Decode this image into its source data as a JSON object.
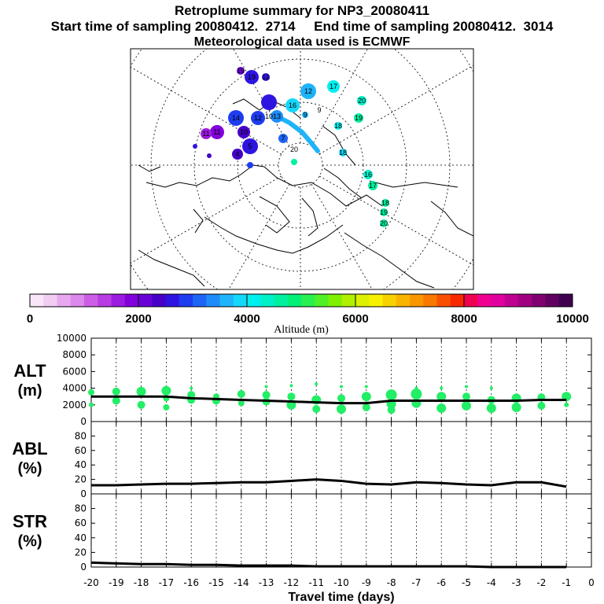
{
  "header": {
    "title": "Retroplume summary for NP3_20080411",
    "line2": "Start time of sampling 20080412.  2714     End time of sampling 20080412.  3014",
    "line3": "Meteorological data used is ECMWF"
  },
  "colorbar": {
    "label": "Altitude (m)",
    "ticks": [
      "0",
      "2000",
      "4000",
      "6000",
      "8000",
      "10000"
    ],
    "colors": [
      "#f9e6f9",
      "#f2cdf2",
      "#e8a8ef",
      "#dc88ec",
      "#cc5ee6",
      "#b83ce2",
      "#9d1ae0",
      "#8200dc",
      "#6a00d8",
      "#4600c8",
      "#2e14e0",
      "#1e3cf0",
      "#1e64f5",
      "#1e8cf8",
      "#1eb4fa",
      "#14d8fa",
      "#00f0f0",
      "#00f0c8",
      "#00f0a0",
      "#00f078",
      "#28f050",
      "#50f028",
      "#80f000",
      "#b0f000",
      "#dcf000",
      "#f8f000",
      "#f8d200",
      "#f8b400",
      "#f89600",
      "#f87800",
      "#f85000",
      "#f82800",
      "#f00050",
      "#f00090",
      "#e000a0",
      "#c00090",
      "#a00080",
      "#800070",
      "#600060",
      "#400050"
    ]
  },
  "map": {
    "labels": [
      "19",
      "12",
      "19",
      "17",
      "20",
      "16",
      "12",
      "18",
      "19",
      "13",
      "12",
      "10",
      "9",
      "5",
      "4",
      "20",
      "16",
      "17",
      "18",
      "19",
      "20",
      "18",
      "7",
      "11",
      "9",
      "14",
      "11",
      "10"
    ]
  },
  "colors": {
    "alt_dots": "#22ee66",
    "line": "#000000"
  },
  "chart_data": [
    {
      "type": "scatter",
      "panel": "ALT",
      "ylabel": "ALT\n(m)",
      "xlabel": "Travel time (days)",
      "xlim": [
        -20,
        0
      ],
      "ylim": [
        0,
        10000
      ],
      "yticks": [
        0,
        2000,
        4000,
        6000,
        8000,
        10000
      ],
      "xticks": [
        -20,
        -19,
        -18,
        -17,
        -16,
        -15,
        -14,
        -13,
        -12,
        -11,
        -10,
        -9,
        -8,
        -7,
        -6,
        -5,
        -4,
        -3,
        -2,
        -1,
        0
      ],
      "median_line": {
        "x": [
          -20,
          -19,
          -18,
          -17,
          -16,
          -15,
          -14,
          -13,
          -12,
          -11,
          -10,
          -9,
          -8,
          -7,
          -6,
          -5,
          -4,
          -3,
          -2,
          -1
        ],
        "y": [
          3000,
          3000,
          3000,
          3000,
          2800,
          2700,
          2600,
          2500,
          2400,
          2300,
          2200,
          2200,
          2500,
          2500,
          2500,
          2500,
          2500,
          2500,
          2600,
          2600
        ]
      },
      "clusters": [
        {
          "x": -20,
          "alts": [
            3500,
            2000
          ],
          "sizes": [
            4,
            3
          ]
        },
        {
          "x": -19,
          "alts": [
            3600,
            2500
          ],
          "sizes": [
            5,
            5
          ]
        },
        {
          "x": -18,
          "alts": [
            3600,
            2000
          ],
          "sizes": [
            6,
            5
          ]
        },
        {
          "x": -17,
          "alts": [
            3700,
            2800,
            1700
          ],
          "sizes": [
            6,
            4,
            4
          ]
        },
        {
          "x": -16,
          "alts": [
            3200,
            2600,
            4000
          ],
          "sizes": [
            5,
            5,
            2
          ]
        },
        {
          "x": -15,
          "alts": [
            3000,
            2500
          ],
          "sizes": [
            4,
            5
          ]
        },
        {
          "x": -14,
          "alts": [
            3300,
            2200
          ],
          "sizes": [
            5,
            4
          ]
        },
        {
          "x": -13,
          "alts": [
            3200,
            2400,
            4200
          ],
          "sizes": [
            5,
            5,
            2
          ]
        },
        {
          "x": -12,
          "alts": [
            3000,
            2000,
            4300
          ],
          "sizes": [
            5,
            6,
            2
          ]
        },
        {
          "x": -11,
          "alts": [
            2600,
            1500,
            4500
          ],
          "sizes": [
            6,
            5,
            2
          ]
        },
        {
          "x": -10,
          "alts": [
            2800,
            1500,
            4200
          ],
          "sizes": [
            5,
            6,
            2
          ]
        },
        {
          "x": -9,
          "alts": [
            3000,
            1700,
            4200
          ],
          "sizes": [
            6,
            5,
            2
          ]
        },
        {
          "x": -8,
          "alts": [
            3200,
            2100,
            1400
          ],
          "sizes": [
            7,
            6,
            5
          ]
        },
        {
          "x": -7,
          "alts": [
            3300,
            2200,
            4000
          ],
          "sizes": [
            7,
            6,
            2
          ]
        },
        {
          "x": -6,
          "alts": [
            3000,
            1600,
            4000
          ],
          "sizes": [
            6,
            6,
            2
          ]
        },
        {
          "x": -5,
          "alts": [
            3000,
            1900,
            4200
          ],
          "sizes": [
            5,
            6,
            2
          ]
        },
        {
          "x": -4,
          "alts": [
            2600,
            1600,
            4000
          ],
          "sizes": [
            5,
            6,
            2
          ]
        },
        {
          "x": -3,
          "alts": [
            2800,
            1700
          ],
          "sizes": [
            6,
            6
          ]
        },
        {
          "x": -2,
          "alts": [
            2900,
            1900
          ],
          "sizes": [
            5,
            5
          ]
        },
        {
          "x": -1,
          "alts": [
            3000,
            2000
          ],
          "sizes": [
            6,
            3
          ]
        }
      ]
    },
    {
      "type": "line",
      "panel": "ABL",
      "ylabel": "ABL\n(%)",
      "xlim": [
        -20,
        0
      ],
      "ylim": [
        0,
        100
      ],
      "yticks": [
        0,
        20,
        40,
        60,
        80
      ],
      "x": [
        -20,
        -19,
        -18,
        -17,
        -16,
        -15,
        -14,
        -13,
        -12,
        -11,
        -10,
        -9,
        -8,
        -7,
        -6,
        -5,
        -4,
        -3,
        -2,
        -1
      ],
      "y": [
        12,
        12,
        13,
        14,
        14,
        15,
        16,
        16,
        18,
        20,
        18,
        14,
        13,
        16,
        15,
        13,
        12,
        16,
        16,
        10
      ]
    },
    {
      "type": "line",
      "panel": "STR",
      "ylabel": "STR\n(%)",
      "xlim": [
        -20,
        0
      ],
      "ylim": [
        0,
        100
      ],
      "yticks": [
        0,
        20,
        40,
        60,
        80
      ],
      "x": [
        -20,
        -19,
        -18,
        -17,
        -16,
        -15,
        -14,
        -13,
        -12,
        -11,
        -10,
        -9,
        -8,
        -7,
        -6,
        -5,
        -4,
        -3,
        -2,
        -1
      ],
      "y": [
        6,
        5,
        4,
        4,
        3,
        3,
        2,
        2,
        2,
        1,
        1,
        1,
        1,
        1,
        1,
        1,
        0,
        0,
        0,
        0
      ]
    }
  ]
}
